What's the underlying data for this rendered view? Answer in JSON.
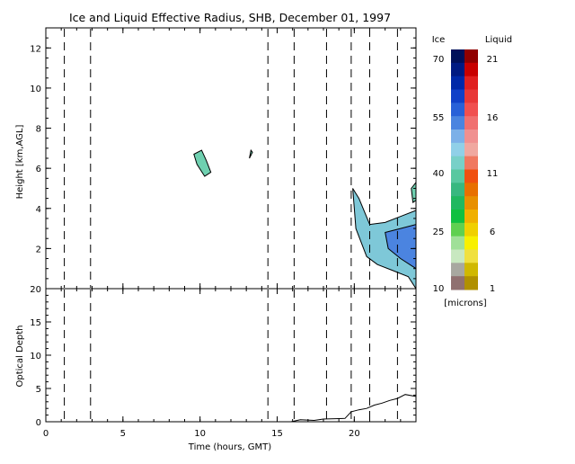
{
  "chart_data": [
    {
      "panel": "effective-radius",
      "type": "heatmap",
      "title": "Ice and Liquid Effective Radius, SHB, December 01, 1997",
      "xlabel": "",
      "ylabel": "Height [km,AGL]",
      "xlim": [
        0,
        24
      ],
      "ylim": [
        0,
        13
      ],
      "x_ticks": [
        "0",
        "5",
        "10",
        "15",
        "20"
      ],
      "y_ticks": [
        "2",
        "4",
        "6",
        "8",
        "10",
        "12"
      ],
      "event_times": [
        1.2,
        2.9,
        14.4,
        16.1,
        18.2,
        19.8,
        21.0,
        22.8
      ],
      "cloud_patches": [
        {
          "x": [
            9.6,
            10.1,
            10.4,
            10.7,
            10.3,
            9.8
          ],
          "y": [
            6.7,
            6.9,
            6.4,
            5.8,
            5.6,
            6.2
          ],
          "shade": "#6fd0b0"
        },
        {
          "x": [
            13.2,
            13.4,
            13.3
          ],
          "y": [
            6.5,
            6.8,
            6.9
          ],
          "shade": "#6fd0b0"
        },
        {
          "x": [
            20.3,
            21.0,
            22.0,
            23.0,
            24.0,
            24.0,
            23.5,
            22.5,
            21.5,
            20.8,
            20.1,
            19.9
          ],
          "y": [
            4.5,
            3.2,
            3.3,
            3.6,
            3.9,
            0.0,
            0.6,
            0.9,
            1.2,
            1.6,
            3.0,
            5.0
          ],
          "shade": "#7ec8d8"
        },
        {
          "x": [
            22.0,
            23.0,
            24.0,
            24.0,
            23.0,
            22.2
          ],
          "y": [
            2.8,
            3.0,
            3.2,
            1.0,
            1.5,
            2.0
          ],
          "shade": "#4b84e0"
        },
        {
          "x": [
            23.7,
            24.0,
            24.0,
            23.8
          ],
          "y": [
            5.0,
            5.3,
            4.4,
            4.3
          ],
          "shade": "#6fd0b0"
        }
      ]
    },
    {
      "panel": "optical-depth",
      "type": "line",
      "xlabel": "Time (hours, GMT)",
      "ylabel": "Optical Depth",
      "xlim": [
        0,
        24
      ],
      "ylim": [
        0,
        20
      ],
      "x_ticks": [
        "0",
        "5",
        "10",
        "15",
        "20"
      ],
      "y_ticks": [
        "0",
        "5",
        "10",
        "15",
        "20"
      ],
      "event_times": [
        1.2,
        2.9,
        14.4,
        16.1,
        18.2,
        19.8,
        21.0,
        22.8
      ],
      "x": [
        0,
        9.5,
        10.8,
        15.9,
        16.5,
        17.4,
        18.0,
        19.4,
        19.8,
        20.3,
        20.8,
        21.3,
        21.8,
        22.3,
        22.8,
        23.3,
        24.0
      ],
      "y": [
        0,
        0,
        0,
        0,
        0.3,
        0.2,
        0.4,
        0.5,
        1.5,
        1.8,
        2.0,
        2.5,
        2.8,
        3.2,
        3.5,
        4.1,
        3.8
      ]
    }
  ],
  "colorbar": {
    "ice_label": "Ice",
    "liquid_label": "Liquid",
    "units": "[microns]",
    "ice_ticks": [
      "70",
      "55",
      "40",
      "25",
      "10"
    ],
    "liquid_ticks": [
      "21",
      "16",
      "11",
      "6",
      "1"
    ],
    "ice_colors": [
      "#00105a",
      "#001a82",
      "#0028a8",
      "#1040c8",
      "#2860d8",
      "#4a84e0",
      "#7cb0e8",
      "#90d0e8",
      "#78d0c8",
      "#58c8a0",
      "#38b880",
      "#20b860",
      "#10c040",
      "#60d050",
      "#a0e098",
      "#c8e8c0",
      "#a8a8a0",
      "#907070"
    ],
    "liquid_colors": [
      "#900000",
      "#c80000",
      "#e02020",
      "#e83838",
      "#f05050",
      "#f07070",
      "#f09090",
      "#f0a8a0",
      "#f07860",
      "#f05010",
      "#e87000",
      "#e89000",
      "#f0b000",
      "#f0d000",
      "#f8f000",
      "#f0e040",
      "#d0b800",
      "#b09000"
    ]
  }
}
